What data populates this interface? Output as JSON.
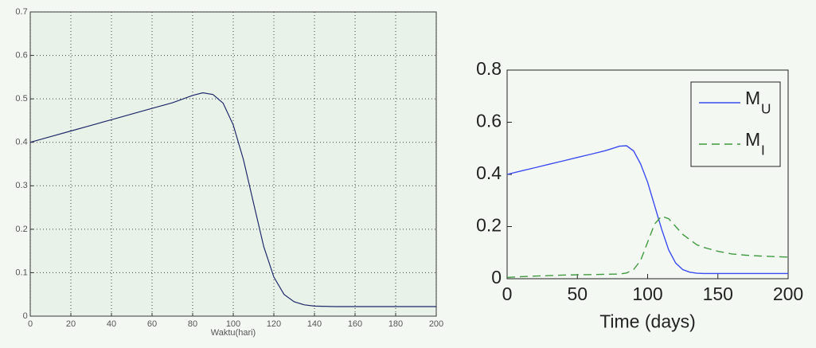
{
  "chart_data": [
    {
      "type": "line",
      "x": [
        0,
        10,
        20,
        30,
        40,
        50,
        60,
        70,
        80,
        85,
        90,
        95,
        100,
        105,
        110,
        115,
        120,
        125,
        130,
        135,
        140,
        150,
        160,
        170,
        180,
        190,
        200
      ],
      "series": [
        {
          "color": "#1f2a6b",
          "style": "solid",
          "values": [
            0.4,
            0.413,
            0.426,
            0.439,
            0.452,
            0.465,
            0.478,
            0.491,
            0.508,
            0.514,
            0.51,
            0.49,
            0.44,
            0.36,
            0.26,
            0.16,
            0.09,
            0.05,
            0.033,
            0.026,
            0.023,
            0.022,
            0.022,
            0.022,
            0.022,
            0.022,
            0.022
          ]
        }
      ],
      "xlabel": "Waktu(hari)",
      "xlim": [
        0,
        200
      ],
      "xticks": [
        0,
        20,
        40,
        60,
        80,
        100,
        120,
        140,
        160,
        180,
        200
      ],
      "ylim": [
        0,
        0.7
      ],
      "yticks": [
        0,
        0.1,
        0.2,
        0.3,
        0.4,
        0.5,
        0.6,
        0.7
      ],
      "grid": true
    },
    {
      "type": "line",
      "x": [
        0,
        10,
        20,
        30,
        40,
        50,
        60,
        70,
        80,
        85,
        90,
        95,
        100,
        105,
        110,
        115,
        120,
        125,
        130,
        135,
        140,
        150,
        160,
        170,
        180,
        190,
        200
      ],
      "series": [
        {
          "name": "M",
          "subscript": "U",
          "color": "#3a4cf0",
          "style": "solid",
          "values": [
            0.4,
            0.413,
            0.426,
            0.439,
            0.452,
            0.465,
            0.478,
            0.491,
            0.508,
            0.51,
            0.49,
            0.44,
            0.37,
            0.28,
            0.19,
            0.11,
            0.06,
            0.035,
            0.025,
            0.021,
            0.02,
            0.02,
            0.02,
            0.02,
            0.02,
            0.02,
            0.02
          ]
        },
        {
          "name": "M",
          "subscript": "I",
          "color": "#3f9a3f",
          "style": "dashed",
          "values": [
            0.005,
            0.008,
            0.01,
            0.012,
            0.014,
            0.015,
            0.016,
            0.017,
            0.018,
            0.022,
            0.035,
            0.07,
            0.14,
            0.21,
            0.24,
            0.23,
            0.2,
            0.17,
            0.15,
            0.13,
            0.12,
            0.105,
            0.095,
            0.09,
            0.087,
            0.085,
            0.083
          ]
        }
      ],
      "xlabel": "Time (days)",
      "xlim": [
        0,
        200
      ],
      "xticks": [
        0,
        50,
        100,
        150,
        200
      ],
      "ylim": [
        0,
        0.8
      ],
      "yticks": [
        0,
        0.2,
        0.4,
        0.6,
        0.8
      ],
      "grid": false,
      "legend": "upper-right"
    }
  ]
}
